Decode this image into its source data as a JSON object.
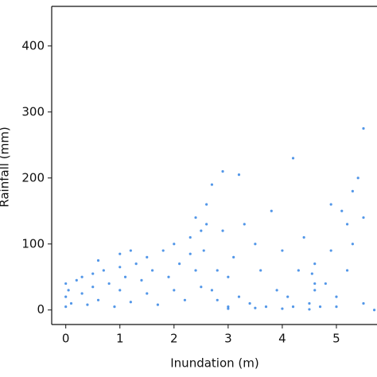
{
  "chart_data": {
    "type": "scatter",
    "x_label": "Inundation (m)",
    "y_label": "Rainfall (mm)",
    "xlim": [
      -0.26,
      5.75
    ],
    "ylim": [
      -22,
      460
    ],
    "xticks": [
      0,
      1,
      2,
      3,
      4,
      5
    ],
    "yticks": [
      0,
      100,
      200,
      300,
      400
    ],
    "color": "#3585e4",
    "x": [
      0,
      0,
      0,
      0.05,
      0.1,
      0.2,
      0.3,
      0.3,
      0.4,
      0.5,
      0.5,
      0.6,
      0.7,
      0.8,
      0.9,
      1.0,
      1.0,
      1.1,
      1.2,
      1.3,
      1.4,
      1.5,
      1.5,
      1.6,
      1.7,
      1.8,
      1.9,
      2.0,
      2.0,
      2.1,
      2.2,
      2.3,
      2.4,
      2.5,
      2.5,
      2.6,
      2.6,
      2.55,
      2.3,
      1.2,
      0.6,
      2.4,
      1.0,
      2.7,
      2.8,
      2.9,
      2.9,
      3.0,
      3.1,
      3.2,
      3.3,
      3.4,
      3.5,
      3.6,
      3.7,
      3.8,
      3.9,
      4.0,
      4.1,
      4.2,
      4.2,
      4.3,
      4.4,
      4.5,
      4.6,
      4.6,
      4.7,
      4.8,
      4.9,
      5.0,
      5.1,
      5.2,
      5.3,
      5.3,
      5.4,
      5.5,
      5.7,
      2.7,
      3.2,
      4.9,
      5.2,
      5.5,
      4.55,
      4.6,
      3.0,
      2.8,
      3.0,
      3.5,
      4.0,
      4.5,
      5.0,
      5.5
    ],
    "y": [
      5,
      20,
      40,
      30,
      10,
      45,
      25,
      50,
      8,
      55,
      35,
      15,
      60,
      40,
      5,
      65,
      30,
      50,
      12,
      70,
      45,
      25,
      80,
      60,
      8,
      90,
      50,
      30,
      100,
      70,
      15,
      110,
      60,
      120,
      35,
      130,
      160,
      90,
      85,
      90,
      75,
      140,
      85,
      30,
      15,
      120,
      210,
      50,
      80,
      20,
      130,
      10,
      100,
      60,
      5,
      150,
      30,
      90,
      20,
      230,
      5,
      60,
      110,
      10,
      70,
      30,
      5,
      40,
      90,
      20,
      150,
      60,
      100,
      180,
      200,
      275,
      0,
      190,
      205,
      160,
      130,
      140,
      55,
      40,
      5,
      60,
      2,
      3,
      2,
      1,
      5,
      10
    ]
  }
}
